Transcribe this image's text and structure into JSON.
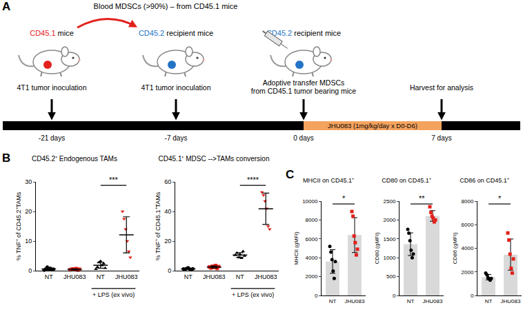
{
  "panel_labels": [
    "A",
    "B",
    "C"
  ],
  "diagram": {
    "header": "Blood MDSCs (>90%) – from CD45.1 mice",
    "mice": [
      {
        "tag": "CD45.1",
        "text": " mice",
        "tag_color": "#e3211c"
      },
      {
        "tag": "CD45.2",
        "text": " recipient mice",
        "tag_color": "#2474c6"
      },
      {
        "tag": "CD45.2",
        "text": " recipient mice",
        "tag_color": "#2474c6"
      }
    ],
    "steps": [
      [
        "4T1 tumor inoculation"
      ],
      [
        "4T1 tumor inoculation"
      ],
      [
        "Adoptive transfer MDSCs",
        "from CD45.1 tumor bearing mice"
      ],
      [
        "Harvest for analysis"
      ]
    ],
    "days": [
      "-21 days",
      "-7 days",
      "0 days",
      "7 days"
    ],
    "treatment": {
      "text": "JHU083 (1mg/kg/day x D0-D6)",
      "color": "#f4a35e"
    }
  },
  "chart_data": [
    {
      "type": "scatter",
      "title": "CD45.2⁺ Endogenous TAMs",
      "y_label": "% TNF⁺ of CD45.2⁺TAMs",
      "categories": [
        "NT",
        "JHU083",
        "NT",
        "JHU083"
      ],
      "groups": [
        {
          "category": "NT",
          "values": [
            0.2,
            0.6,
            1.2,
            0.4,
            0.8,
            0.3,
            0.5
          ],
          "mean": 0.57,
          "sd": 0.35,
          "color": "#000000",
          "marker": "circle"
        },
        {
          "category": "JHU083",
          "values": [
            0.3,
            0.5,
            0.6,
            0.4,
            0.7,
            0.2,
            0.5
          ],
          "mean": 0.46,
          "sd": 0.17,
          "color": "#e3211c",
          "marker": "square"
        },
        {
          "category": "NT",
          "values": [
            0.5,
            1.2,
            2.8,
            3.2,
            1.8,
            2.4,
            0.9
          ],
          "mean": 1.83,
          "sd": 1.0,
          "color": "#000000",
          "marker": "triangle-up"
        },
        {
          "category": "JHU083",
          "values": [
            20,
            17.5,
            14,
            10,
            6.5,
            4.5
          ],
          "mean": 12.1,
          "sd": 6.1,
          "color": "#e3211c",
          "marker": "triangle-down"
        }
      ],
      "group_label": {
        "text": "+ LPS (ex vivo)",
        "from": 2,
        "to": 3
      },
      "significance": [
        {
          "from": 2,
          "to": 3,
          "label": "***"
        }
      ],
      "ylim": [
        0,
        30
      ],
      "yticks": [
        0,
        10,
        20,
        30
      ],
      "grid": false
    },
    {
      "type": "scatter",
      "title": "CD45.1⁺ MDSC -->TAMs conversion",
      "y_label": "% TNF⁺ of CD45.1⁺TAMs",
      "categories": [
        "NT",
        "JHU083",
        "NT",
        "JHU083"
      ],
      "groups": [
        {
          "category": "NT",
          "values": [
            1.2,
            0.8,
            1.5,
            2.0,
            1.0,
            0.6,
            1.3
          ],
          "mean": 1.2,
          "sd": 0.45,
          "color": "#000000",
          "marker": "circle"
        },
        {
          "category": "JHU083",
          "values": [
            2.5,
            1.8,
            3.0,
            2.2,
            3.5,
            1.5,
            2.8
          ],
          "mean": 2.47,
          "sd": 0.7,
          "color": "#e3211c",
          "marker": "square"
        },
        {
          "category": "NT",
          "values": [
            10.5,
            12,
            9,
            11,
            8.5,
            13,
            10
          ],
          "mean": 10.57,
          "sd": 1.6,
          "color": "#000000",
          "marker": "triangle-up"
        },
        {
          "category": "JHU083",
          "values": [
            53,
            51,
            47,
            42,
            30,
            28
          ],
          "mean": 41.8,
          "sd": 10.6,
          "color": "#e3211c",
          "marker": "triangle-down"
        }
      ],
      "group_label": {
        "text": "+ LPS (ex vivo)",
        "from": 2,
        "to": 3
      },
      "significance": [
        {
          "from": 2,
          "to": 3,
          "label": "****"
        }
      ],
      "ylim": [
        0,
        60
      ],
      "yticks": [
        0,
        20,
        40,
        60
      ],
      "grid": false
    },
    {
      "type": "bar",
      "title": "MHCII on CD45.1⁺",
      "y_label": "MHCII (gMFI)",
      "color": "#d9d9d9",
      "categories": [
        "NT",
        "JHU083"
      ],
      "groups": [
        {
          "category": "NT",
          "values": [
            5200,
            4600,
            3800,
            2600,
            1800,
            3600
          ],
          "mean": 3600,
          "sd": 1250,
          "color": "#000000",
          "marker": "circle"
        },
        {
          "category": "JHU083",
          "values": [
            8900,
            8400,
            6300,
            5600,
            4300,
            4900
          ],
          "mean": 6400,
          "sd": 1850,
          "color": "#e3211c",
          "marker": "square"
        }
      ],
      "significance": [
        {
          "from": 0,
          "to": 1,
          "label": "*"
        }
      ],
      "ylim": [
        0,
        10000
      ],
      "yticks": [
        0,
        2000,
        4000,
        6000,
        8000,
        10000
      ],
      "grid": false
    },
    {
      "type": "bar",
      "title": "CD80 on CD45.1⁺",
      "y_label": "CD80 (gMFI)",
      "color": "#d9d9d9",
      "categories": [
        "NT",
        "JHU083"
      ],
      "groups": [
        {
          "category": "NT",
          "values": [
            1750,
            1650,
            1450,
            1200,
            1000,
            1100
          ],
          "mean": 1358,
          "sd": 300,
          "color": "#000000",
          "marker": "circle"
        },
        {
          "category": "JHU083",
          "values": [
            2350,
            2200,
            2100,
            2050,
            1950,
            2000
          ],
          "mean": 2108,
          "sd": 140,
          "color": "#e3211c",
          "marker": "square"
        }
      ],
      "significance": [
        {
          "from": 0,
          "to": 1,
          "label": "**"
        }
      ],
      "ylim": [
        0,
        2500
      ],
      "yticks": [
        0,
        500,
        1000,
        1500,
        2000,
        2500
      ],
      "grid": false
    },
    {
      "type": "bar",
      "title": "CD86 on CD45.1⁺",
      "y_label": "CD86 (gMFI)",
      "color": "#d9d9d9",
      "categories": [
        "NT",
        "JHU083"
      ],
      "groups": [
        {
          "category": "NT",
          "values": [
            1900,
            1750,
            1500,
            1400,
            1300,
            1450
          ],
          "mean": 1550,
          "sd": 230,
          "color": "#000000",
          "marker": "circle"
        },
        {
          "category": "JHU083",
          "values": [
            5300,
            4700,
            3500,
            2300,
            1900,
            3100
          ],
          "mean": 3467,
          "sd": 1320,
          "color": "#e3211c",
          "marker": "square"
        }
      ],
      "significance": [
        {
          "from": 0,
          "to": 1,
          "label": "*"
        }
      ],
      "ylim": [
        0,
        8000
      ],
      "yticks": [
        0,
        2000,
        4000,
        6000,
        8000
      ],
      "grid": false
    }
  ]
}
